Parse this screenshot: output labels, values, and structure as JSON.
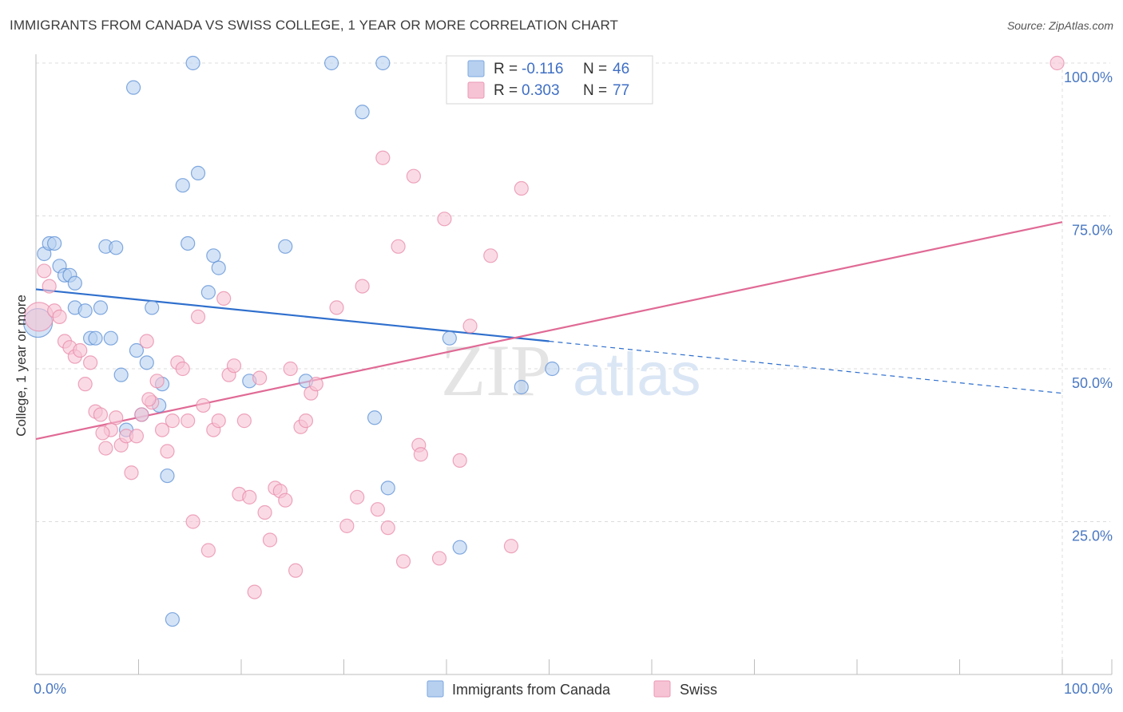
{
  "title": "IMMIGRANTS FROM CANADA VS SWISS COLLEGE, 1 YEAR OR MORE CORRELATION CHART",
  "source": "Source: ZipAtlas.com",
  "watermark": {
    "zip": "ZIP",
    "atlas": "atlas"
  },
  "colors": {
    "blue": "#5b8fd6",
    "blue_fill": "#b7d0f0",
    "blue_line": "#2f6fcd",
    "pink": "#e889a8",
    "pink_fill": "#f6c3d4",
    "pink_line": "#e06a95",
    "tick_label": "#4a78c2"
  },
  "legend_box": {
    "rows": [
      {
        "r_label": "R = ",
        "r_value": "-0.116",
        "n_label": "N = ",
        "n_value": "46"
      },
      {
        "r_label": "R = ",
        "r_value": "0.303",
        "n_label": "N = ",
        "n_value": "77"
      }
    ]
  },
  "chart_data": {
    "type": "scatter",
    "title": "IMMIGRANTS FROM CANADA VS SWISS COLLEGE, 1 YEAR OR MORE CORRELATION CHART",
    "xlabel": "",
    "ylabel": "College, 1 year or more",
    "xlim": [
      0,
      100
    ],
    "ylim": [
      0,
      100
    ],
    "x_tick_labels": [
      "0.0%",
      "100.0%"
    ],
    "y_tick_labels": [
      {
        "value": 100,
        "label": "100.0%"
      },
      {
        "value": 75,
        "label": "75.0%"
      },
      {
        "value": 50,
        "label": "50.0%"
      },
      {
        "value": 25,
        "label": "25.0%"
      }
    ],
    "grid": true,
    "legend": [
      "Immigrants from Canada",
      "Swiss"
    ],
    "series": [
      {
        "name": "Immigrants from Canada",
        "r": -0.116,
        "n": 46,
        "trend": {
          "x0": 0,
          "y0": 63.0,
          "x1": 50,
          "y1": 54.5,
          "dashed_to_x": 100,
          "dashed_to_y": 46.0
        },
        "points": [
          [
            0.2,
            57.5
          ],
          [
            0.8,
            68.8
          ],
          [
            1.3,
            70.5
          ],
          [
            1.8,
            70.5
          ],
          [
            2.3,
            66.8
          ],
          [
            2.8,
            65.3
          ],
          [
            3.3,
            65.3
          ],
          [
            3.8,
            64.0
          ],
          [
            3.8,
            60.0
          ],
          [
            4.8,
            59.5
          ],
          [
            5.3,
            55.0
          ],
          [
            5.8,
            55.0
          ],
          [
            6.3,
            60.0
          ],
          [
            7.3,
            55.0
          ],
          [
            6.8,
            70.0
          ],
          [
            7.8,
            69.8
          ],
          [
            8.3,
            49.0
          ],
          [
            8.8,
            40.0
          ],
          [
            9.8,
            53.0
          ],
          [
            9.5,
            96.0
          ],
          [
            10.8,
            51.0
          ],
          [
            10.3,
            42.5
          ],
          [
            11.3,
            60.0
          ],
          [
            12.3,
            47.5
          ],
          [
            12.8,
            32.5
          ],
          [
            13.3,
            9.0
          ],
          [
            14.3,
            80.0
          ],
          [
            15.3,
            100.0
          ],
          [
            15.8,
            82.0
          ],
          [
            14.8,
            70.5
          ],
          [
            16.8,
            62.5
          ],
          [
            17.3,
            68.5
          ],
          [
            17.8,
            66.5
          ],
          [
            20.8,
            48.0
          ],
          [
            24.3,
            70.0
          ],
          [
            26.3,
            48.0
          ],
          [
            28.8,
            100.0
          ],
          [
            31.8,
            92.0
          ],
          [
            33.8,
            100.0
          ],
          [
            33.0,
            42.0
          ],
          [
            34.3,
            30.5
          ],
          [
            40.3,
            55.0
          ],
          [
            41.3,
            20.8
          ],
          [
            47.3,
            47.0
          ],
          [
            50.3,
            50.0
          ],
          [
            12.0,
            44.0
          ]
        ]
      },
      {
        "name": "Swiss",
        "r": 0.303,
        "n": 77,
        "trend": {
          "x0": 0,
          "y0": 38.5,
          "x1": 100,
          "y1": 74.0
        },
        "points": [
          [
            0.3,
            58.5
          ],
          [
            0.8,
            66.0
          ],
          [
            1.3,
            63.5
          ],
          [
            1.8,
            59.5
          ],
          [
            2.3,
            58.5
          ],
          [
            2.8,
            54.5
          ],
          [
            3.3,
            53.5
          ],
          [
            3.8,
            52.0
          ],
          [
            4.3,
            53.0
          ],
          [
            4.8,
            47.5
          ],
          [
            5.3,
            51.0
          ],
          [
            5.8,
            43.0
          ],
          [
            6.3,
            42.5
          ],
          [
            6.8,
            37.0
          ],
          [
            7.3,
            40.0
          ],
          [
            7.8,
            42.0
          ],
          [
            8.3,
            37.5
          ],
          [
            8.8,
            39.0
          ],
          [
            9.3,
            33.0
          ],
          [
            9.8,
            39.0
          ],
          [
            10.3,
            42.5
          ],
          [
            10.8,
            54.5
          ],
          [
            11.3,
            44.5
          ],
          [
            11.8,
            48.0
          ],
          [
            12.3,
            40.0
          ],
          [
            12.8,
            36.5
          ],
          [
            13.3,
            41.5
          ],
          [
            13.8,
            51.0
          ],
          [
            14.3,
            50.0
          ],
          [
            14.8,
            41.5
          ],
          [
            15.3,
            25.0
          ],
          [
            15.8,
            58.5
          ],
          [
            16.3,
            44.0
          ],
          [
            16.8,
            20.3
          ],
          [
            17.3,
            40.0
          ],
          [
            17.8,
            41.5
          ],
          [
            18.3,
            61.5
          ],
          [
            18.8,
            49.0
          ],
          [
            19.3,
            50.5
          ],
          [
            19.8,
            29.5
          ],
          [
            20.3,
            41.5
          ],
          [
            20.8,
            29.0
          ],
          [
            21.3,
            13.5
          ],
          [
            21.8,
            48.5
          ],
          [
            22.3,
            26.5
          ],
          [
            22.8,
            22.0
          ],
          [
            23.3,
            30.5
          ],
          [
            23.8,
            30.0
          ],
          [
            24.3,
            28.5
          ],
          [
            24.8,
            50.0
          ],
          [
            25.3,
            17.0
          ],
          [
            25.8,
            40.5
          ],
          [
            26.3,
            41.5
          ],
          [
            26.8,
            46.0
          ],
          [
            27.3,
            47.5
          ],
          [
            29.3,
            60.0
          ],
          [
            30.3,
            24.3
          ],
          [
            31.3,
            29.0
          ],
          [
            31.8,
            63.5
          ],
          [
            33.3,
            27.0
          ],
          [
            33.8,
            84.5
          ],
          [
            34.3,
            24.0
          ],
          [
            35.3,
            70.0
          ],
          [
            35.8,
            18.5
          ],
          [
            36.8,
            81.5
          ],
          [
            37.3,
            37.5
          ],
          [
            37.5,
            36.0
          ],
          [
            39.3,
            19.0
          ],
          [
            39.8,
            74.5
          ],
          [
            42.3,
            57.0
          ],
          [
            41.3,
            35.0
          ],
          [
            44.3,
            68.5
          ],
          [
            46.3,
            21.0
          ],
          [
            47.3,
            79.5
          ],
          [
            99.5,
            100.0
          ],
          [
            11.0,
            45.0
          ],
          [
            6.5,
            39.5
          ]
        ]
      }
    ]
  }
}
